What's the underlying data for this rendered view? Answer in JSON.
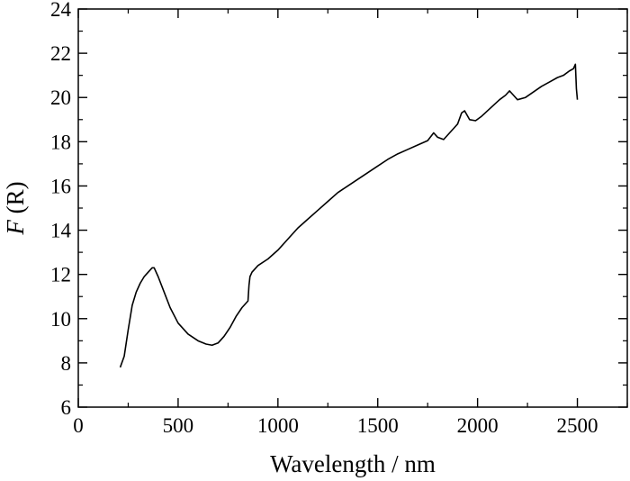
{
  "chart_data": {
    "type": "line",
    "xlabel": "Wavelength / nm",
    "ylabel": {
      "italic": "F",
      "rest": " (R)"
    },
    "xlim": [
      0,
      2750
    ],
    "ylim": [
      6,
      24
    ],
    "x_ticks": [
      0,
      500,
      1000,
      1500,
      2000,
      2500
    ],
    "y_ticks": [
      6,
      8,
      10,
      12,
      14,
      16,
      18,
      20,
      22,
      24
    ],
    "x_minor_step": 250,
    "y_minor_step": 1,
    "grid": false,
    "line_color": "#000000",
    "series": [
      {
        "x": [
          210,
          230,
          250,
          270,
          290,
          310,
          330,
          350,
          370,
          380,
          400,
          430,
          460,
          500,
          550,
          600,
          640,
          670,
          700,
          730,
          760,
          790,
          820,
          850,
          855,
          860,
          870,
          900,
          950,
          1000,
          1050,
          1100,
          1150,
          1200,
          1250,
          1300,
          1350,
          1400,
          1450,
          1500,
          1550,
          1600,
          1650,
          1700,
          1750,
          1780,
          1800,
          1830,
          1860,
          1880,
          1900,
          1920,
          1935,
          1960,
          1990,
          2020,
          2050,
          2080,
          2110,
          2140,
          2160,
          2180,
          2200,
          2240,
          2280,
          2320,
          2360,
          2400,
          2430,
          2460,
          2480,
          2490,
          2495,
          2500
        ],
        "y": [
          7.8,
          8.3,
          9.5,
          10.6,
          11.2,
          11.6,
          11.9,
          12.1,
          12.3,
          12.3,
          11.9,
          11.2,
          10.5,
          9.8,
          9.3,
          9.0,
          8.85,
          8.8,
          8.9,
          9.2,
          9.6,
          10.1,
          10.5,
          10.8,
          11.5,
          11.9,
          12.1,
          12.4,
          12.7,
          13.1,
          13.6,
          14.1,
          14.5,
          14.9,
          15.3,
          15.7,
          16.0,
          16.3,
          16.6,
          16.9,
          17.2,
          17.45,
          17.65,
          17.85,
          18.05,
          18.4,
          18.2,
          18.1,
          18.4,
          18.6,
          18.8,
          19.3,
          19.4,
          19.0,
          18.95,
          19.15,
          19.4,
          19.65,
          19.9,
          20.1,
          20.3,
          20.1,
          19.9,
          20.0,
          20.25,
          20.5,
          20.7,
          20.9,
          21.0,
          21.2,
          21.3,
          21.5,
          20.4,
          19.9
        ]
      }
    ]
  }
}
